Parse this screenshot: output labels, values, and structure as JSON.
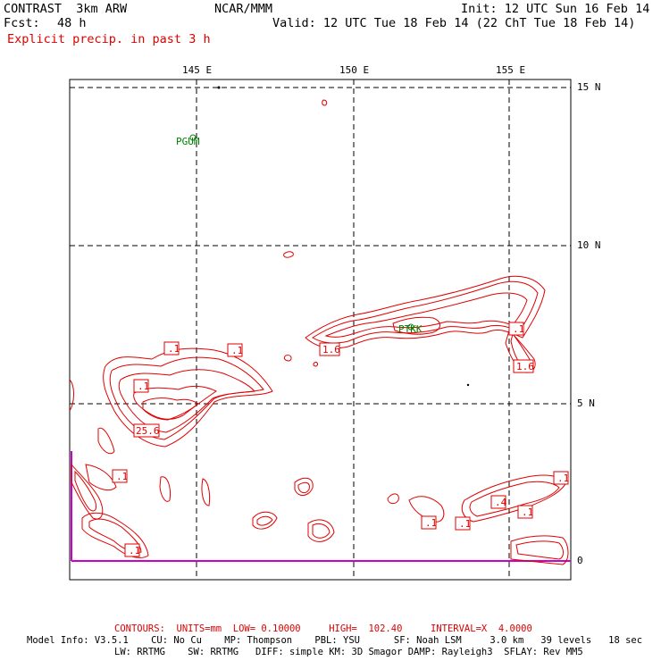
{
  "header": {
    "model": "CONTRAST  3km ARW",
    "org": "NCAR/MMM",
    "init": "Init: 12 UTC Sun 16 Feb 14",
    "fcst_label": "Fcst:",
    "fcst_value": "48 h",
    "valid": "Valid: 12 UTC Tue 18 Feb 14 (22 ChT Tue 18 Feb 14)",
    "field": "Explicit precip. in past 3 h"
  },
  "map": {
    "lon_ticks": [
      "145 E",
      "150 E",
      "155 E"
    ],
    "lat_ticks": [
      "15 N",
      "10 N",
      "5 N",
      "0"
    ],
    "stations": [
      {
        "name": "PGUM"
      },
      {
        "name": "PTKK"
      }
    ],
    "contour_labels": [
      ".1",
      ".1",
      ".1",
      "25.6",
      ".1",
      ".1",
      "1.6",
      ".1",
      "1.6",
      ".1",
      ".4",
      ".1",
      ".1",
      ".1"
    ]
  },
  "footer": {
    "contours": "CONTOURS:  UNITS=mm  LOW= 0.10000     HIGH=  102.40     INTERVAL=X  4.0000",
    "line1": "Model Info: V3.5.1    CU: No Cu    MP: Thompson    PBL: YSU      SF: Noah LSM     3.0 km   39 levels   18 sec",
    "line2": "LW: RRTMG    SW: RRTMG   DIFF: simple KM: 3D Smagor DAMP: Rayleigh3  SFLAY: Rev MM5"
  },
  "colors": {
    "contour": "#e00000",
    "boundary": "#cc00cc",
    "station": "#008000"
  }
}
